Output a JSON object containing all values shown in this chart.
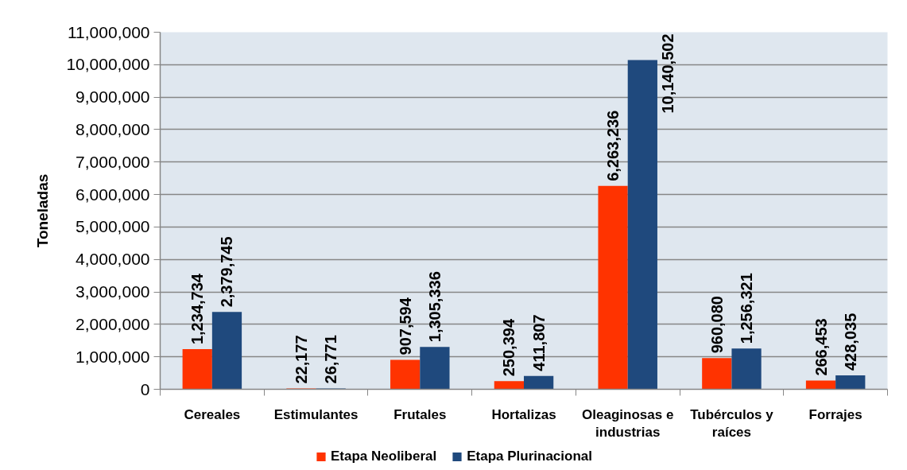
{
  "chart_data": {
    "type": "bar",
    "ylabel": "Toneladas",
    "categories": [
      "Cereales",
      "Estimulantes",
      "Frutales",
      "Hortalizas",
      "Oleaginosas e industrias",
      "Tubérculos y raíces",
      "Forrajes"
    ],
    "series": [
      {
        "name": "Etapa Neoliberal",
        "color": "#ff3300",
        "values": [
          1234734,
          22177,
          907594,
          250394,
          6263236,
          960080,
          266453
        ],
        "value_labels": [
          "1,234,734",
          "22,177",
          "907,594",
          "250,394",
          "6,263,236",
          "960,080",
          "266,453"
        ]
      },
      {
        "name": "Etapa Plurinacional",
        "color": "#1f497d",
        "values": [
          2379745,
          26771,
          1305336,
          411807,
          10140502,
          1256321,
          428035
        ],
        "value_labels": [
          "2,379,745",
          "26,771",
          "1,305,336",
          "411,807",
          "10,140,502",
          "1,256,321",
          "428,035"
        ]
      }
    ],
    "ylim": [
      0,
      11000000
    ],
    "yticks": [
      {
        "value": 0,
        "label": "0"
      },
      {
        "value": 1000000,
        "label": "1,000,000"
      },
      {
        "value": 2000000,
        "label": "2,000,000"
      },
      {
        "value": 3000000,
        "label": "3,000,000"
      },
      {
        "value": 4000000,
        "label": "4,000,000"
      },
      {
        "value": 5000000,
        "label": "5,000,000"
      },
      {
        "value": 6000000,
        "label": "6,000,000"
      },
      {
        "value": 7000000,
        "label": "7,000,000"
      },
      {
        "value": 8000000,
        "label": "8,000,000"
      },
      {
        "value": 9000000,
        "label": "9,000,000"
      },
      {
        "value": 10000000,
        "label": "10,000,000"
      },
      {
        "value": 11000000,
        "label": "11,000,000"
      }
    ],
    "grid": "y",
    "legend": "bottom"
  }
}
